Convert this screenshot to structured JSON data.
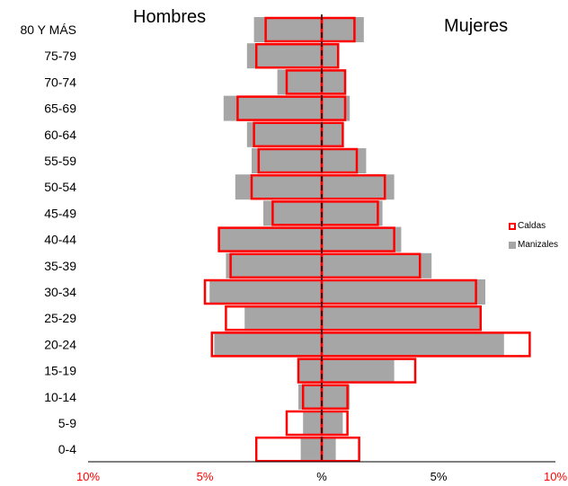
{
  "labels": {
    "men": "Hombres",
    "women": "Mujeres"
  },
  "colors": {
    "caldas": "#ff0000",
    "manizales": "#a6a6a6",
    "x_tick_edge": "#ff0000",
    "x_tick_center": "#000000"
  },
  "chart_data": {
    "type": "bar",
    "subtype": "population-pyramid",
    "title": "",
    "xlabel": "",
    "ylabel": "",
    "xlim": [
      -10,
      10
    ],
    "x_ticks": [
      {
        "value": -10,
        "label": "10%"
      },
      {
        "value": -5,
        "label": "5%"
      },
      {
        "value": 0,
        "label": "%"
      },
      {
        "value": 5,
        "label": "5%"
      },
      {
        "value": 10,
        "label": "10%"
      }
    ],
    "categories": [
      "80 Y MÁS",
      "75-79",
      "70-74",
      "65-69",
      "60-64",
      "55-59",
      "50-54",
      "45-49",
      "40-44",
      "35-39",
      "30-34",
      "25-29",
      "20-24",
      "15-19",
      "10-14",
      "5-9",
      "0-4"
    ],
    "legend": {
      "position": "right",
      "entries": [
        "Caldas",
        "Manizales"
      ]
    },
    "series": [
      {
        "name": "Caldas",
        "style": "outline",
        "men": [
          2.4,
          2.8,
          1.5,
          3.6,
          2.9,
          2.7,
          3.0,
          2.1,
          4.4,
          3.9,
          5.0,
          4.1,
          4.7,
          1.0,
          0.8,
          1.5,
          2.8
        ],
        "women": [
          1.4,
          0.7,
          1.0,
          1.0,
          0.9,
          1.5,
          2.7,
          2.4,
          3.1,
          4.2,
          6.6,
          6.8,
          8.9,
          4.0,
          1.1,
          1.1,
          1.6
        ]
      },
      {
        "name": "Manizales",
        "style": "filled",
        "men": [
          2.9,
          3.2,
          1.9,
          4.2,
          3.2,
          3.0,
          3.7,
          2.5,
          4.4,
          4.1,
          4.8,
          3.3,
          4.6,
          1.0,
          1.0,
          0.8,
          0.9
        ],
        "women": [
          1.8,
          0.7,
          1.0,
          1.2,
          0.9,
          1.9,
          3.1,
          2.6,
          3.4,
          4.7,
          7.0,
          6.8,
          7.8,
          3.1,
          1.2,
          0.9,
          0.6
        ]
      }
    ]
  }
}
